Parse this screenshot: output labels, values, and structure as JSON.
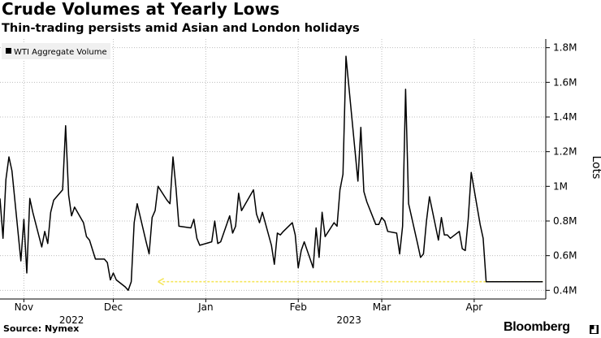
{
  "title": "Crude Volumes at Yearly Lows",
  "subtitle": "Thin-trading persists amid Asian and London holidays",
  "source": "Source: Nymex",
  "brand": "Bloomberg",
  "brand_icon": "bloomberg-chart-icon",
  "colors": {
    "line": "#000000",
    "grid": "#bdbdbd",
    "arrow": "#f5e65c",
    "axis": "#000000"
  },
  "chart_data": {
    "type": "line",
    "title": "Crude Volumes at Yearly Lows",
    "subtitle": "Thin-trading persists amid Asian and London holidays",
    "ylabel": "Lots",
    "ylim": [
      0.35,
      1.85
    ],
    "yticks": [
      0.4,
      0.6,
      0.8,
      1.0,
      1.2,
      1.4,
      1.6,
      1.8
    ],
    "ytick_labels": [
      "0.4M",
      "0.6M",
      "0.8M",
      "1M",
      "1.2M",
      "1.4M",
      "1.6M",
      "1.8M"
    ],
    "xlim": [
      "2022-10-24",
      "2023-04-25"
    ],
    "xticks": [
      {
        "date": "2022-11-01",
        "label": "Nov"
      },
      {
        "date": "2022-12-01",
        "label": "Dec"
      },
      {
        "date": "2023-01-01",
        "label": "Jan"
      },
      {
        "date": "2023-02-01",
        "label": "Feb"
      },
      {
        "date": "2023-03-01",
        "label": "Mar"
      },
      {
        "date": "2023-04-01",
        "label": "Apr"
      }
    ],
    "year_labels": [
      {
        "date": "2022-11-17",
        "label": "2022"
      },
      {
        "date": "2023-02-18",
        "label": "2023"
      }
    ],
    "legend": {
      "position": "top-left",
      "entries": [
        "WTI Aggregate Volume"
      ]
    },
    "grid": {
      "horizontal": true,
      "vertical": true
    },
    "annotation": {
      "type": "dashed-arrow",
      "y": 0.45,
      "from": "2023-04-24",
      "to": "2022-12-16"
    },
    "series": [
      {
        "name": "WTI Aggregate Volume",
        "x": [
          "2022-10-24",
          "2022-10-25",
          "2022-10-26",
          "2022-10-27",
          "2022-10-28",
          "2022-10-31",
          "2022-11-01",
          "2022-11-02",
          "2022-11-03",
          "2022-11-04",
          "2022-11-07",
          "2022-11-08",
          "2022-11-09",
          "2022-11-10",
          "2022-11-11",
          "2022-11-14",
          "2022-11-15",
          "2022-11-16",
          "2022-11-17",
          "2022-11-18",
          "2022-11-21",
          "2022-11-22",
          "2022-11-23",
          "2022-11-25",
          "2022-11-28",
          "2022-11-29",
          "2022-11-30",
          "2022-12-01",
          "2022-12-02",
          "2022-12-05",
          "2022-12-06",
          "2022-12-07",
          "2022-12-08",
          "2022-12-09",
          "2022-12-12",
          "2022-12-13",
          "2022-12-14",
          "2022-12-15",
          "2022-12-16",
          "2022-12-19",
          "2022-12-20",
          "2022-12-21",
          "2022-12-22",
          "2022-12-23",
          "2022-12-27",
          "2022-12-28",
          "2022-12-29",
          "2022-12-30",
          "2023-01-03",
          "2023-01-04",
          "2023-01-05",
          "2023-01-06",
          "2023-01-09",
          "2023-01-10",
          "2023-01-11",
          "2023-01-12",
          "2023-01-13",
          "2023-01-17",
          "2023-01-18",
          "2023-01-19",
          "2023-01-20",
          "2023-01-23",
          "2023-01-24",
          "2023-01-25",
          "2023-01-26",
          "2023-01-27",
          "2023-01-30",
          "2023-01-31",
          "2023-02-01",
          "2023-02-02",
          "2023-02-03",
          "2023-02-06",
          "2023-02-07",
          "2023-02-08",
          "2023-02-09",
          "2023-02-10",
          "2023-02-13",
          "2023-02-14",
          "2023-02-15",
          "2023-02-16",
          "2023-02-17",
          "2023-02-21",
          "2023-02-22",
          "2023-02-23",
          "2023-02-24",
          "2023-02-27",
          "2023-02-28",
          "2023-03-01",
          "2023-03-02",
          "2023-03-03",
          "2023-03-06",
          "2023-03-07",
          "2023-03-08",
          "2023-03-09",
          "2023-03-10",
          "2023-03-13",
          "2023-03-14",
          "2023-03-15",
          "2023-03-16",
          "2023-03-17",
          "2023-03-20",
          "2023-03-21",
          "2023-03-22",
          "2023-03-23",
          "2023-03-24",
          "2023-03-27",
          "2023-03-28",
          "2023-03-29",
          "2023-03-30",
          "2023-03-31",
          "2023-04-03",
          "2023-04-04",
          "2023-04-05",
          "2023-04-06",
          "2023-04-10",
          "2023-04-11",
          "2023-04-12",
          "2023-04-13",
          "2023-04-14",
          "2023-04-17",
          "2023-04-18",
          "2023-04-19",
          "2023-04-20",
          "2023-04-21",
          "2023-04-24"
        ],
        "values": [
          0.93,
          0.7,
          1.04,
          1.17,
          1.09,
          0.57,
          0.81,
          0.5,
          0.93,
          0.85,
          0.65,
          0.74,
          0.67,
          0.85,
          0.92,
          0.98,
          1.35,
          0.95,
          0.83,
          0.88,
          0.79,
          0.71,
          0.69,
          0.58,
          0.58,
          0.56,
          0.46,
          0.5,
          0.46,
          0.42,
          0.4,
          0.45,
          0.79,
          0.9,
          0.68,
          0.61,
          0.82,
          0.86,
          1.0,
          0.92,
          0.9,
          1.17,
          0.99,
          0.77,
          0.76,
          0.81,
          0.7,
          0.66,
          0.68,
          0.8,
          0.67,
          0.68,
          0.83,
          0.73,
          0.77,
          0.96,
          0.86,
          0.98,
          0.84,
          0.79,
          0.85,
          0.66,
          0.55,
          0.73,
          0.72,
          0.74,
          0.79,
          0.72,
          0.53,
          0.63,
          0.68,
          0.53,
          0.76,
          0.59,
          0.85,
          0.71,
          0.79,
          0.77,
          0.98,
          1.07,
          1.75,
          1.03,
          1.34,
          0.97,
          0.91,
          0.78,
          0.78,
          0.82,
          0.8,
          0.74,
          0.73,
          0.61,
          0.77,
          1.56,
          0.9,
          0.67,
          0.59,
          0.61,
          0.8,
          0.94,
          0.69,
          0.82,
          0.72,
          0.72,
          0.7,
          0.74,
          0.64,
          0.63,
          0.81,
          1.08,
          0.78,
          0.7,
          0.45,
          0.45,
          0.45,
          0.45,
          0.45,
          0.45,
          0.45,
          0.45,
          0.45,
          0.45,
          0.45,
          0.45,
          0.45
        ]
      }
    ]
  }
}
